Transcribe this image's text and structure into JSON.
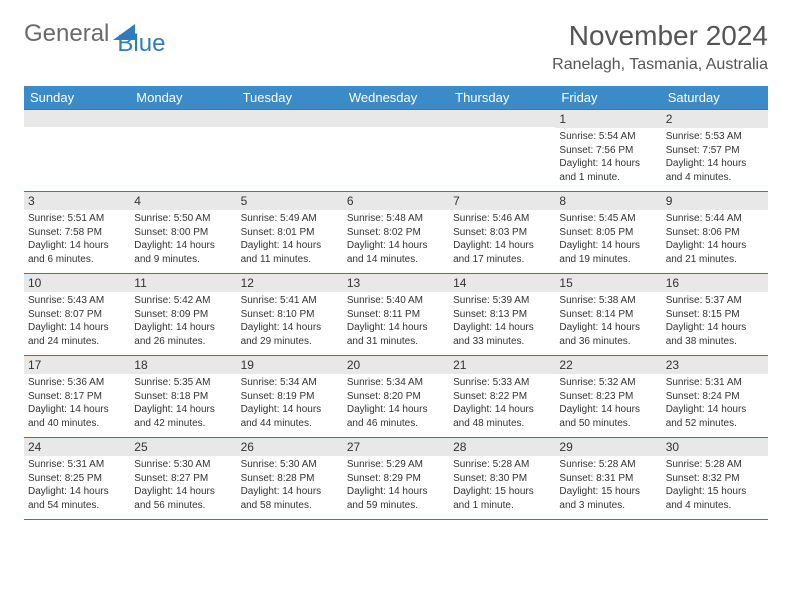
{
  "logo": {
    "general": "General",
    "blue": "Blue"
  },
  "title": "November 2024",
  "location": "Ranelagh, Tasmania, Australia",
  "colors": {
    "header_bg": "#3b8bc9",
    "header_text": "#ffffff",
    "border": "#2f7bbf",
    "daynum_bg": "#e8e8e8",
    "logo_gray": "#6a6a6a",
    "logo_blue": "#2f7bbf"
  },
  "weekdays": [
    "Sunday",
    "Monday",
    "Tuesday",
    "Wednesday",
    "Thursday",
    "Friday",
    "Saturday"
  ],
  "weeks": [
    [
      {
        "n": "",
        "sunrise": "",
        "sunset": "",
        "daylight": ""
      },
      {
        "n": "",
        "sunrise": "",
        "sunset": "",
        "daylight": ""
      },
      {
        "n": "",
        "sunrise": "",
        "sunset": "",
        "daylight": ""
      },
      {
        "n": "",
        "sunrise": "",
        "sunset": "",
        "daylight": ""
      },
      {
        "n": "",
        "sunrise": "",
        "sunset": "",
        "daylight": ""
      },
      {
        "n": "1",
        "sunrise": "Sunrise: 5:54 AM",
        "sunset": "Sunset: 7:56 PM",
        "daylight": "Daylight: 14 hours and 1 minute."
      },
      {
        "n": "2",
        "sunrise": "Sunrise: 5:53 AM",
        "sunset": "Sunset: 7:57 PM",
        "daylight": "Daylight: 14 hours and 4 minutes."
      }
    ],
    [
      {
        "n": "3",
        "sunrise": "Sunrise: 5:51 AM",
        "sunset": "Sunset: 7:58 PM",
        "daylight": "Daylight: 14 hours and 6 minutes."
      },
      {
        "n": "4",
        "sunrise": "Sunrise: 5:50 AM",
        "sunset": "Sunset: 8:00 PM",
        "daylight": "Daylight: 14 hours and 9 minutes."
      },
      {
        "n": "5",
        "sunrise": "Sunrise: 5:49 AM",
        "sunset": "Sunset: 8:01 PM",
        "daylight": "Daylight: 14 hours and 11 minutes."
      },
      {
        "n": "6",
        "sunrise": "Sunrise: 5:48 AM",
        "sunset": "Sunset: 8:02 PM",
        "daylight": "Daylight: 14 hours and 14 minutes."
      },
      {
        "n": "7",
        "sunrise": "Sunrise: 5:46 AM",
        "sunset": "Sunset: 8:03 PM",
        "daylight": "Daylight: 14 hours and 17 minutes."
      },
      {
        "n": "8",
        "sunrise": "Sunrise: 5:45 AM",
        "sunset": "Sunset: 8:05 PM",
        "daylight": "Daylight: 14 hours and 19 minutes."
      },
      {
        "n": "9",
        "sunrise": "Sunrise: 5:44 AM",
        "sunset": "Sunset: 8:06 PM",
        "daylight": "Daylight: 14 hours and 21 minutes."
      }
    ],
    [
      {
        "n": "10",
        "sunrise": "Sunrise: 5:43 AM",
        "sunset": "Sunset: 8:07 PM",
        "daylight": "Daylight: 14 hours and 24 minutes."
      },
      {
        "n": "11",
        "sunrise": "Sunrise: 5:42 AM",
        "sunset": "Sunset: 8:09 PM",
        "daylight": "Daylight: 14 hours and 26 minutes."
      },
      {
        "n": "12",
        "sunrise": "Sunrise: 5:41 AM",
        "sunset": "Sunset: 8:10 PM",
        "daylight": "Daylight: 14 hours and 29 minutes."
      },
      {
        "n": "13",
        "sunrise": "Sunrise: 5:40 AM",
        "sunset": "Sunset: 8:11 PM",
        "daylight": "Daylight: 14 hours and 31 minutes."
      },
      {
        "n": "14",
        "sunrise": "Sunrise: 5:39 AM",
        "sunset": "Sunset: 8:13 PM",
        "daylight": "Daylight: 14 hours and 33 minutes."
      },
      {
        "n": "15",
        "sunrise": "Sunrise: 5:38 AM",
        "sunset": "Sunset: 8:14 PM",
        "daylight": "Daylight: 14 hours and 36 minutes."
      },
      {
        "n": "16",
        "sunrise": "Sunrise: 5:37 AM",
        "sunset": "Sunset: 8:15 PM",
        "daylight": "Daylight: 14 hours and 38 minutes."
      }
    ],
    [
      {
        "n": "17",
        "sunrise": "Sunrise: 5:36 AM",
        "sunset": "Sunset: 8:17 PM",
        "daylight": "Daylight: 14 hours and 40 minutes."
      },
      {
        "n": "18",
        "sunrise": "Sunrise: 5:35 AM",
        "sunset": "Sunset: 8:18 PM",
        "daylight": "Daylight: 14 hours and 42 minutes."
      },
      {
        "n": "19",
        "sunrise": "Sunrise: 5:34 AM",
        "sunset": "Sunset: 8:19 PM",
        "daylight": "Daylight: 14 hours and 44 minutes."
      },
      {
        "n": "20",
        "sunrise": "Sunrise: 5:34 AM",
        "sunset": "Sunset: 8:20 PM",
        "daylight": "Daylight: 14 hours and 46 minutes."
      },
      {
        "n": "21",
        "sunrise": "Sunrise: 5:33 AM",
        "sunset": "Sunset: 8:22 PM",
        "daylight": "Daylight: 14 hours and 48 minutes."
      },
      {
        "n": "22",
        "sunrise": "Sunrise: 5:32 AM",
        "sunset": "Sunset: 8:23 PM",
        "daylight": "Daylight: 14 hours and 50 minutes."
      },
      {
        "n": "23",
        "sunrise": "Sunrise: 5:31 AM",
        "sunset": "Sunset: 8:24 PM",
        "daylight": "Daylight: 14 hours and 52 minutes."
      }
    ],
    [
      {
        "n": "24",
        "sunrise": "Sunrise: 5:31 AM",
        "sunset": "Sunset: 8:25 PM",
        "daylight": "Daylight: 14 hours and 54 minutes."
      },
      {
        "n": "25",
        "sunrise": "Sunrise: 5:30 AM",
        "sunset": "Sunset: 8:27 PM",
        "daylight": "Daylight: 14 hours and 56 minutes."
      },
      {
        "n": "26",
        "sunrise": "Sunrise: 5:30 AM",
        "sunset": "Sunset: 8:28 PM",
        "daylight": "Daylight: 14 hours and 58 minutes."
      },
      {
        "n": "27",
        "sunrise": "Sunrise: 5:29 AM",
        "sunset": "Sunset: 8:29 PM",
        "daylight": "Daylight: 14 hours and 59 minutes."
      },
      {
        "n": "28",
        "sunrise": "Sunrise: 5:28 AM",
        "sunset": "Sunset: 8:30 PM",
        "daylight": "Daylight: 15 hours and 1 minute."
      },
      {
        "n": "29",
        "sunrise": "Sunrise: 5:28 AM",
        "sunset": "Sunset: 8:31 PM",
        "daylight": "Daylight: 15 hours and 3 minutes."
      },
      {
        "n": "30",
        "sunrise": "Sunrise: 5:28 AM",
        "sunset": "Sunset: 8:32 PM",
        "daylight": "Daylight: 15 hours and 4 minutes."
      }
    ]
  ]
}
